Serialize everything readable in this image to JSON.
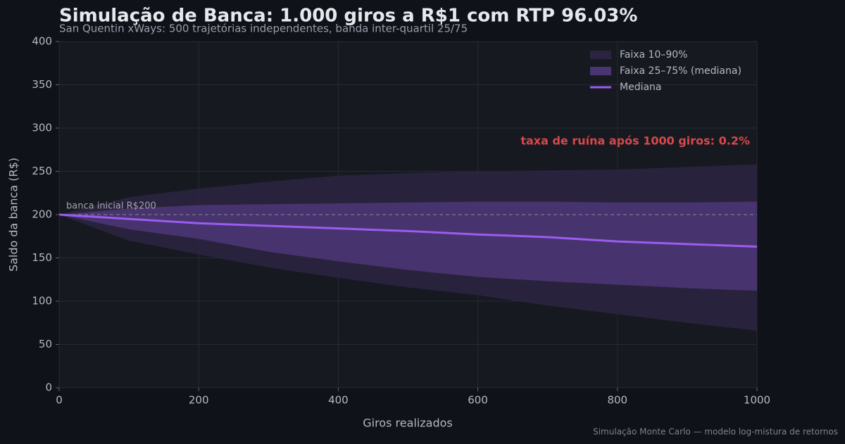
{
  "chart_data": {
    "type": "line",
    "title": "Simulação de Banca: 1.000 giros a R$1 com RTP 96.03%",
    "subtitle": "San Quentin xWays: 500 trajetórias independentes, banda inter-quartil 25/75",
    "x_label": "Giros realizados",
    "y_label": "Saldo da banca (R$)",
    "x": [
      0,
      100,
      200,
      300,
      400,
      500,
      600,
      700,
      800,
      900,
      1000
    ],
    "bands": [
      {
        "name": "Faixa 10–90%",
        "color": "#2b2440",
        "lower": [
          200,
          170,
          154,
          139,
          127,
          116,
          107,
          95,
          85,
          75,
          66
        ],
        "upper": [
          200,
          220,
          230,
          238,
          245,
          248,
          250,
          251,
          252,
          255,
          258
        ]
      },
      {
        "name": "Faixa 25–75% (mediana)",
        "color": "#4a3572",
        "lower": [
          200,
          183,
          172,
          157,
          146,
          136,
          128,
          123,
          119,
          115,
          112
        ],
        "upper": [
          200,
          207,
          211,
          212,
          213,
          214,
          215,
          215,
          214,
          214,
          215
        ]
      }
    ],
    "series": [
      {
        "name": "Mediana",
        "color": "#9b5cf0",
        "values": [
          200,
          195,
          190,
          187,
          184,
          181,
          177,
          174,
          169,
          166,
          163
        ]
      }
    ],
    "reference_line": {
      "value": 200,
      "label": "banca inicial R$200"
    },
    "annotation": "taxa de ruína após 1000 giros: 0.2%",
    "footnote": "Simulação Monte Carlo — modelo log-mistura de retornos",
    "xlim": [
      0,
      1000
    ],
    "xticks": [
      0,
      200,
      400,
      600,
      800,
      1000
    ],
    "ylim": [
      0,
      400
    ],
    "yticks": [
      0,
      50,
      100,
      150,
      200,
      250,
      300,
      350,
      400
    ],
    "grid": true,
    "legend": "upper right"
  }
}
